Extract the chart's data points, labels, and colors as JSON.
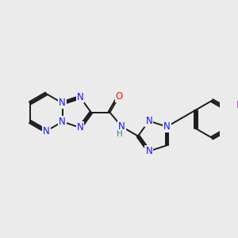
{
  "background_color": "#ebebeb",
  "bond_color": "#1a1a1a",
  "atom_colors": {
    "N": "#1414ff",
    "O": "#ff0d0d",
    "F": "#cc44cc",
    "C": "#1a1a1a",
    "H": "#2e8b57"
  },
  "font_size": 8.5,
  "linewidth": 1.4,
  "figsize": [
    3.0,
    3.0
  ],
  "dpi": 100
}
